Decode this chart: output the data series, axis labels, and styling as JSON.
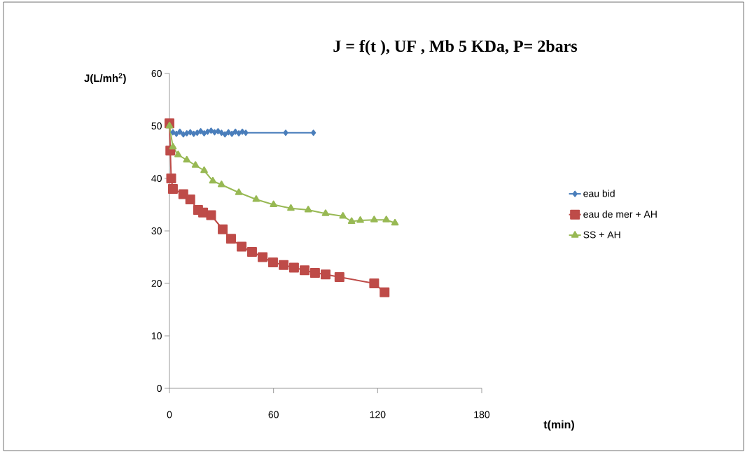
{
  "chart_data": {
    "type": "line",
    "title": "J = f(t ), UF , Mb 5 KDa, P= 2bars",
    "xlabel": "t(min)",
    "ylabel": "J(L/mh$^{2}$)",
    "xlim": [
      0,
      180
    ],
    "xticks": [
      0,
      60,
      120,
      180
    ],
    "ylim": [
      0,
      60
    ],
    "yticks": [
      0,
      10,
      20,
      30,
      40,
      50,
      60
    ],
    "grid": false,
    "legend": "right",
    "series": [
      {
        "name": "eau bid",
        "color": "#4a7ebb",
        "marker": "diamond",
        "x": [
          2,
          4,
          6,
          8,
          10,
          12,
          14,
          16,
          18,
          20,
          22,
          24,
          26,
          28,
          30,
          32,
          34,
          36,
          38,
          40,
          42,
          44,
          67,
          83
        ],
        "values": [
          48.8,
          48.5,
          48.9,
          48.4,
          48.6,
          48.8,
          48.5,
          48.7,
          49,
          48.6,
          48.9,
          49.1,
          48.8,
          49,
          48.7,
          48.4,
          48.8,
          48.5,
          48.9,
          48.6,
          48.9,
          48.7,
          48.7,
          48.7
        ]
      },
      {
        "name": "eau de mer + AH",
        "color": "#be4b48",
        "marker": "square",
        "x": [
          0,
          0.5,
          1,
          2,
          8,
          12,
          16.5,
          19.4,
          24,
          30.7,
          35.5,
          41.6,
          47.6,
          53.7,
          59.7,
          65.8,
          71.8,
          77.9,
          83.9,
          90,
          98,
          118,
          124
        ],
        "values": [
          50.5,
          45.3,
          40,
          38,
          37,
          36,
          34,
          33.5,
          33,
          30.3,
          28.5,
          27,
          26,
          25,
          24,
          23.5,
          23,
          22.5,
          22,
          21.7,
          21.2,
          20,
          18.3
        ]
      },
      {
        "name": "SS + AH",
        "color": "#98b954",
        "marker": "triangle",
        "x": [
          0,
          2,
          5,
          10,
          15,
          20,
          25,
          30,
          40,
          50,
          60,
          70,
          80,
          90,
          100,
          105,
          110,
          118,
          125,
          130
        ],
        "values": [
          50,
          46,
          44.5,
          43.5,
          42.5,
          41.5,
          39.5,
          38.8,
          37.3,
          36,
          35,
          34.3,
          34,
          33.3,
          32.8,
          31.8,
          32,
          32.1,
          32.1,
          31.5
        ]
      }
    ]
  }
}
